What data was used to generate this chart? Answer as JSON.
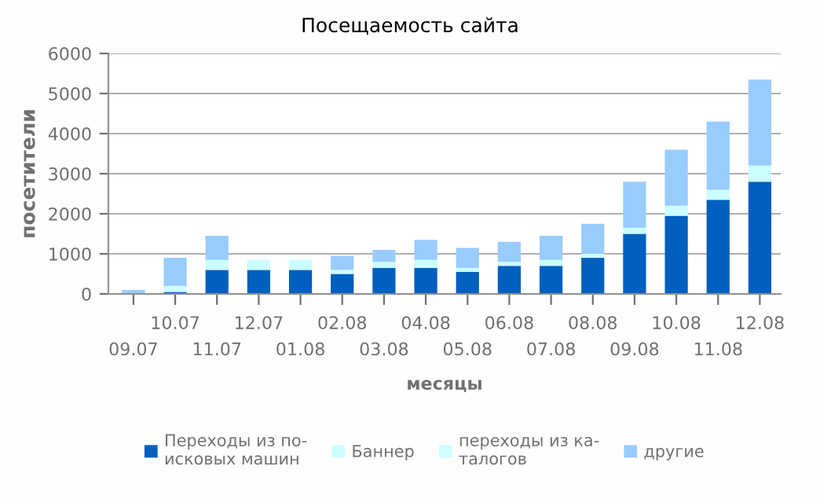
{
  "chart_data": {
    "type": "bar",
    "title": "Посещаемость сайта",
    "xlabel": "месяцы",
    "ylabel": "посетители",
    "categories": [
      "09.07",
      "10.07",
      "11.07",
      "12.07",
      "01.08",
      "02.08",
      "03.08",
      "04.08",
      "05.08",
      "06.08",
      "07.08",
      "08.08",
      "09.08",
      "10.08",
      "11.08",
      "12.08"
    ],
    "stacked": true,
    "series": [
      {
        "name": "Переходы из по-\nисковых машин",
        "color": "#005fbf",
        "values": [
          0,
          50,
          600,
          600,
          600,
          500,
          650,
          650,
          550,
          700,
          700,
          900,
          1500,
          1950,
          2350,
          2800
        ]
      },
      {
        "name": "Баннер",
        "color": "#ccffff",
        "values": [
          null,
          null,
          null,
          null,
          null,
          null,
          null,
          null,
          null,
          null,
          null,
          null,
          null,
          null,
          null,
          null
        ]
      },
      {
        "name": "переходы из ка-\nталогов",
        "color": "#ccffff",
        "values": [
          0,
          150,
          250,
          250,
          250,
          100,
          150,
          200,
          100,
          100,
          150,
          100,
          150,
          250,
          250,
          400
        ]
      },
      {
        "name": "другие",
        "color": "#99ccff",
        "values": [
          100,
          700,
          600,
          0,
          0,
          350,
          300,
          500,
          500,
          500,
          600,
          750,
          1150,
          1400,
          1700,
          2150
        ]
      }
    ],
    "ylim": [
      0,
      6000
    ],
    "yticks": [
      0,
      1000,
      2000,
      3000,
      4000,
      5000,
      6000
    ],
    "grid": "y",
    "legend": "bottom"
  }
}
